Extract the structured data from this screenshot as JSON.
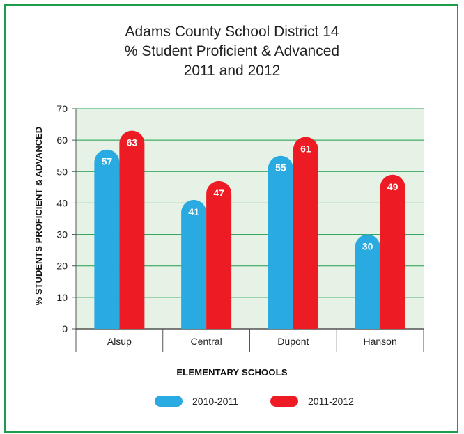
{
  "chart_data": {
    "type": "bar",
    "title_lines": [
      "Adams County School District 14",
      "% Student Proficient & Advanced",
      "2011 and 2012"
    ],
    "xlabel": "ELEMENTARY SCHOOLS",
    "ylabel": "% STUDENTS PROFICIENT & ADVANCED",
    "categories": [
      "Alsup",
      "Central",
      "Dupont",
      "Hanson"
    ],
    "series": [
      {
        "name": "2010-2011",
        "values": [
          57,
          41,
          55,
          30
        ],
        "color": "#29abe2"
      },
      {
        "name": "2011-2012",
        "values": [
          63,
          47,
          61,
          49
        ],
        "color": "#ed1c24"
      }
    ],
    "ylim": [
      0,
      70
    ],
    "yticks": [
      0,
      10,
      20,
      30,
      40,
      50,
      60,
      70
    ],
    "grid": true,
    "plot_background": "#e5f2e5",
    "grid_color": "#1e9b4b",
    "legend_position": "bottom",
    "data_labels": true
  }
}
